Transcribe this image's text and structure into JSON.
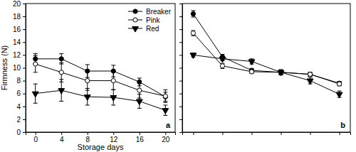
{
  "chart_data": [
    {
      "type": "line",
      "x_label": "Storage days",
      "y_label": "Firmness (N)",
      "annotation": "a",
      "x": [
        0,
        4,
        8,
        12,
        16,
        20
      ],
      "xlim": [
        -1.5,
        21.5
      ],
      "xticks": [
        0,
        4,
        8,
        12,
        16,
        20
      ],
      "ylim": [
        0,
        20
      ],
      "yticks": [
        0,
        2,
        4,
        6,
        8,
        10,
        12,
        14,
        16,
        18,
        20
      ],
      "legend": "upper right",
      "series": [
        {
          "name": "Breaker",
          "color": "#000000",
          "marker": "circle",
          "values": [
            11.4,
            11.4,
            9.5,
            9.5,
            7.8,
            5.5
          ],
          "errors": [
            0.8,
            0.8,
            1.0,
            0.9,
            0.6,
            0.7
          ]
        },
        {
          "name": "Pink",
          "color": "#000000",
          "marker": "circle-open",
          "values": [
            10.6,
            9.3,
            8.0,
            8.0,
            6.5,
            5.6
          ],
          "errors": [
            1.3,
            1.5,
            1.5,
            1.4,
            1.2,
            1.0
          ]
        },
        {
          "name": "Red",
          "color": "#000000",
          "marker": "triangle-down",
          "values": [
            6.0,
            6.5,
            5.5,
            5.4,
            4.8,
            3.4
          ],
          "errors": [
            1.5,
            1.7,
            1.3,
            1.2,
            1.1,
            0.8
          ]
        }
      ]
    },
    {
      "type": "line",
      "annotation": "b",
      "x": [
        0,
        4,
        8,
        12,
        16,
        20
      ],
      "xlim": [
        -1.5,
        21.5
      ],
      "xticks": [
        0,
        4,
        8,
        12,
        16,
        20
      ],
      "ylim": [
        0,
        20
      ],
      "yticks": [
        0,
        2,
        4,
        6,
        8,
        10,
        12,
        14,
        16,
        18,
        20
      ],
      "tick_labels": false,
      "series": [
        {
          "color": "#000000",
          "marker": "circle",
          "values": [
            18.4,
            11.7,
            9.6,
            9.3,
            9.0,
            7.6
          ],
          "errors": [
            0.5,
            0.4,
            0.3,
            0.4,
            0.3,
            0.3
          ]
        },
        {
          "color": "#000000",
          "marker": "circle-open",
          "values": [
            15.4,
            10.3,
            9.4,
            9.3,
            9.0,
            7.5
          ],
          "errors": [
            0.4,
            0.4,
            0.3,
            0.3,
            0.3,
            0.3
          ]
        },
        {
          "color": "#000000",
          "marker": "triangle-down",
          "values": [
            12.0,
            11.4,
            11.0,
            9.3,
            8.0,
            5.9
          ],
          "errors": [
            0.3,
            0.3,
            0.4,
            0.4,
            0.5,
            0.5
          ]
        }
      ]
    }
  ]
}
